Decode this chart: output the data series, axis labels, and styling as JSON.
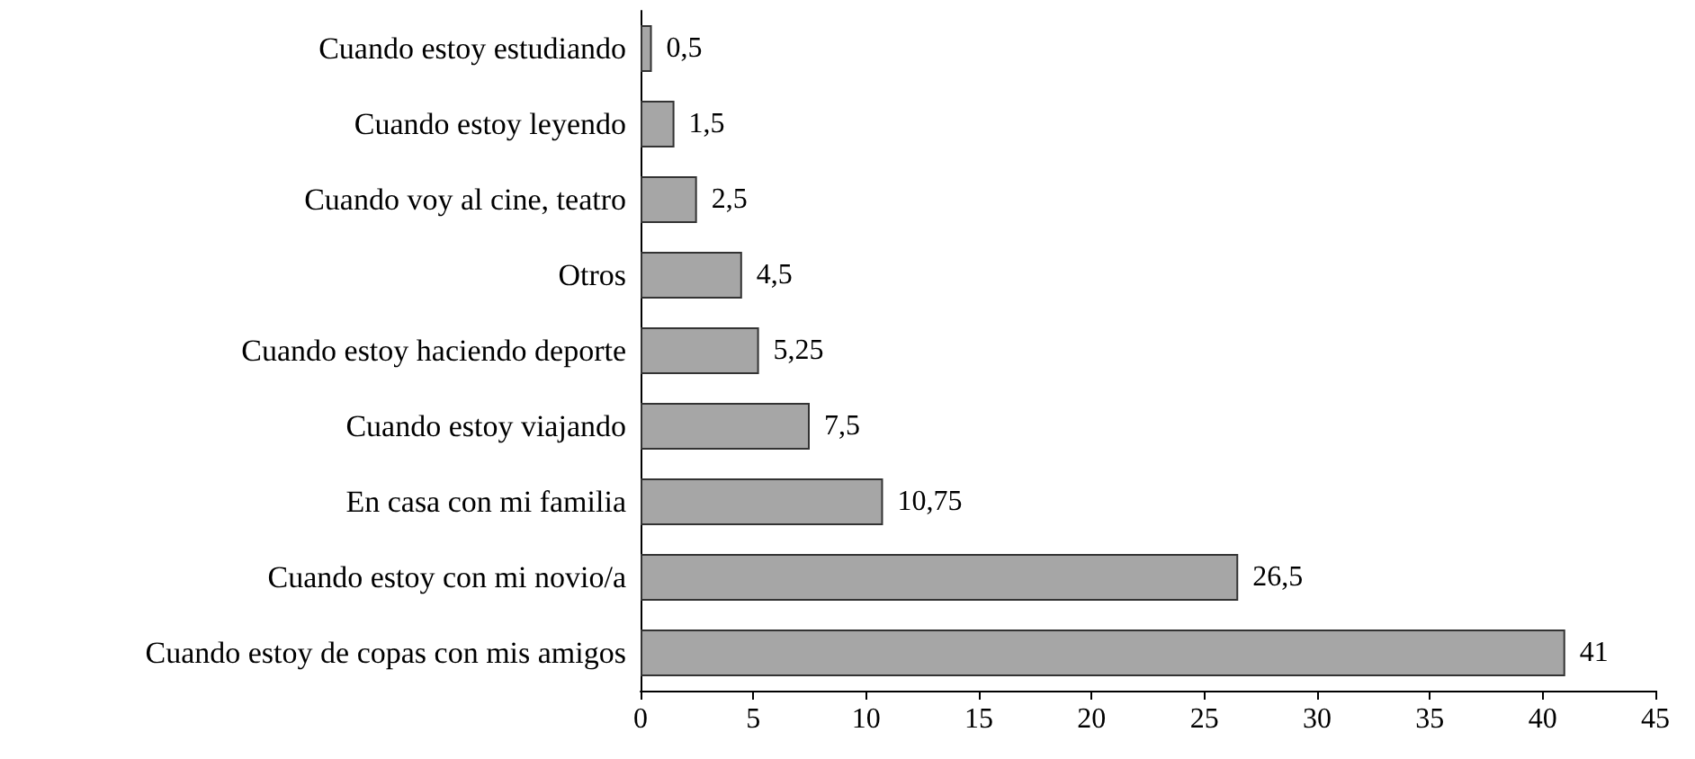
{
  "chart_data": {
    "type": "bar",
    "orientation": "horizontal",
    "categories": [
      "Cuando estoy estudiando",
      "Cuando estoy leyendo",
      "Cuando voy al cine, teatro",
      "Otros",
      "Cuando estoy haciendo deporte",
      "Cuando estoy viajando",
      "En casa con mi familia",
      "Cuando estoy con mi novio/a",
      "Cuando estoy de copas con mis amigos"
    ],
    "values": [
      0.5,
      1.5,
      2.5,
      4.5,
      5.25,
      7.5,
      10.75,
      26.5,
      41
    ],
    "value_labels": [
      "0,5",
      "1,5",
      "2,5",
      "4,5",
      "5,25",
      "7,5",
      "10,75",
      "26,5",
      "41"
    ],
    "color": "#a6a6a6",
    "xlim": [
      0,
      45
    ],
    "xticks": [
      0,
      5,
      10,
      15,
      20,
      25,
      30,
      35,
      40,
      45
    ],
    "grid": false
  }
}
